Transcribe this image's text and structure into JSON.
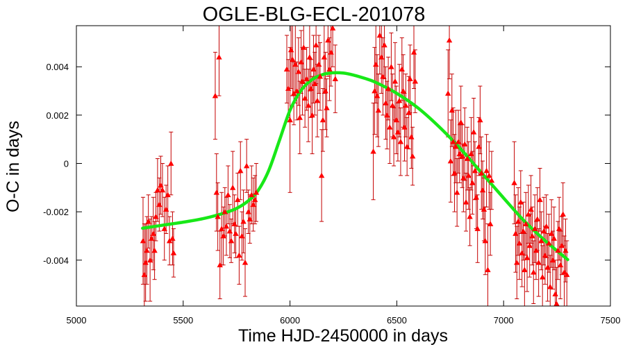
{
  "chart_data": {
    "type": "scatter",
    "title": "OGLE-BLG-ECL-201078",
    "xlabel": "Time HJD-2450000 in days",
    "ylabel": "O-C in days",
    "xlim": [
      5000,
      7500
    ],
    "ylim": [
      -0.0059,
      0.0057
    ],
    "x_ticks": [
      5000,
      5500,
      6000,
      6500,
      7000,
      7500
    ],
    "y_ticks": [
      -0.004,
      -0.002,
      0,
      0.002,
      0.004
    ],
    "x_tick_labels": [
      "5000",
      "5500",
      "6000",
      "6500",
      "7000",
      "7500"
    ],
    "y_tick_labels": [
      "-0.004",
      "-0.002",
      "0",
      "0.002",
      "0.004"
    ],
    "grid": false,
    "colors": {
      "points": "#ff0000",
      "error_bars": "#c40000",
      "model": "#18e818"
    },
    "series": [
      {
        "kind": "data_with_error_bars",
        "points": [
          [
            5312,
            -0.0032,
            0.0018
          ],
          [
            5318,
            -0.0046,
            0.0021
          ],
          [
            5324,
            -0.0041,
            0.0016
          ],
          [
            5330,
            -0.0036,
            0.0014
          ],
          [
            5337,
            -0.0024,
            0.0011
          ],
          [
            5345,
            -0.004,
            0.0017
          ],
          [
            5352,
            -0.0031,
            0.0009
          ],
          [
            5360,
            -0.0029,
            0.0015
          ],
          [
            5366,
            -0.0036,
            0.0012
          ],
          [
            5372,
            -0.0022,
            0.001
          ],
          [
            5380,
            -0.0011,
            0.0013
          ],
          [
            5388,
            -0.0017,
            0.0011
          ],
          [
            5395,
            -0.0009,
            0.0012
          ],
          [
            5403,
            -0.0011,
            0.0011
          ],
          [
            5412,
            -0.0027,
            0.0013
          ],
          [
            5420,
            -0.0019,
            0.001
          ],
          [
            5428,
            -0.0013,
            0.0012
          ],
          [
            5436,
            -0.0032,
            0.001
          ],
          [
            5443,
            0.0,
            0.0013
          ],
          [
            5450,
            -0.0031,
            0.0011
          ],
          [
            5455,
            -0.0037,
            0.001
          ],
          [
            5650,
            0.0028,
            0.0018
          ],
          [
            5656,
            -0.0012,
            0.0016
          ],
          [
            5662,
            -0.0022,
            0.0014
          ],
          [
            5668,
            0.0044,
            0.0016
          ],
          [
            5672,
            -0.0042,
            0.0014
          ],
          [
            5680,
            -0.0027,
            0.0015
          ],
          [
            5688,
            -0.003,
            0.0012
          ],
          [
            5695,
            -0.002,
            0.001
          ],
          [
            5702,
            -0.0026,
            0.0012
          ],
          [
            5710,
            -0.0013,
            0.0012
          ],
          [
            5718,
            -0.0028,
            0.0011
          ],
          [
            5725,
            -0.0032,
            0.0009
          ],
          [
            5732,
            -0.001,
            0.0015
          ],
          [
            5740,
            -0.0025,
            0.0012
          ],
          [
            5746,
            -0.0029,
            0.001
          ],
          [
            5755,
            -0.0015,
            0.0011
          ],
          [
            5762,
            -0.0038,
            0.0012
          ],
          [
            5768,
            -0.0003,
            0.0012
          ],
          [
            5775,
            -0.003,
            0.001
          ],
          [
            5782,
            -0.0024,
            0.0013
          ],
          [
            5790,
            -0.0041,
            0.0014
          ],
          [
            5797,
            -0.0001,
            0.0011
          ],
          [
            5805,
            -0.002,
            0.0009
          ],
          [
            5812,
            -0.0023,
            0.001
          ],
          [
            5820,
            -0.0013,
            0.0012
          ],
          [
            5828,
            -0.0017,
            0.0011
          ],
          [
            5836,
            -0.0015,
            0.001
          ],
          [
            5842,
            -0.0012,
            0.0012
          ],
          [
            5985,
            0.0039,
            0.0014
          ],
          [
            5992,
            0.0031,
            0.0012
          ],
          [
            6000,
            0.0018,
            0.003
          ],
          [
            6005,
            0.0047,
            0.0016
          ],
          [
            6012,
            0.0043,
            0.0015
          ],
          [
            6018,
            0.0029,
            0.0013
          ],
          [
            6025,
            0.0041,
            0.0016
          ],
          [
            6032,
            0.003,
            0.0012
          ],
          [
            6040,
            0.0038,
            0.0014
          ],
          [
            6046,
            0.0019,
            0.0015
          ],
          [
            6052,
            0.0042,
            0.0013
          ],
          [
            6058,
            0.0034,
            0.0014
          ],
          [
            6064,
            0.0048,
            0.0015
          ],
          [
            6070,
            0.0027,
            0.0012
          ],
          [
            6078,
            0.0035,
            0.0013
          ],
          [
            6086,
            0.0024,
            0.0015
          ],
          [
            6092,
            0.0044,
            0.0014
          ],
          [
            6098,
            0.0031,
            0.0012
          ],
          [
            6104,
            0.002,
            0.0016
          ],
          [
            6110,
            0.0039,
            0.0014
          ],
          [
            6116,
            0.0033,
            0.0013
          ],
          [
            6122,
            0.0049,
            0.0016
          ],
          [
            6128,
            0.0026,
            0.0015
          ],
          [
            6135,
            0.0041,
            0.0012
          ],
          [
            6141,
            0.0036,
            0.0014
          ],
          [
            6148,
            -0.0005,
            0.0019
          ],
          [
            6154,
            0.0018,
            0.0013
          ],
          [
            6160,
            0.0044,
            0.0015
          ],
          [
            6166,
            0.003,
            0.0016
          ],
          [
            6172,
            0.0023,
            0.0012
          ],
          [
            6178,
            0.0051,
            0.0015
          ],
          [
            6185,
            0.0039,
            0.0013
          ],
          [
            6192,
            0.0046,
            0.0014
          ],
          [
            6200,
            0.0056,
            0.0016
          ],
          [
            6212,
            0.0035,
            0.0014
          ],
          [
            6390,
            0.0005,
            0.002
          ],
          [
            6396,
            0.003,
            0.0018
          ],
          [
            6402,
            0.0041,
            0.0016
          ],
          [
            6408,
            0.0028,
            0.0017
          ],
          [
            6414,
            0.0022,
            0.0015
          ],
          [
            6420,
            0.0053,
            0.0016
          ],
          [
            6428,
            0.0044,
            0.0015
          ],
          [
            6435,
            0.0036,
            0.0016
          ],
          [
            6442,
            0.0049,
            0.0014
          ],
          [
            6448,
            0.0025,
            0.0015
          ],
          [
            6454,
            0.002,
            0.0014
          ],
          [
            6460,
            0.0031,
            0.0013
          ],
          [
            6467,
            0.0015,
            0.0015
          ],
          [
            6474,
            0.004,
            0.0014
          ],
          [
            6480,
            0.0024,
            0.0013
          ],
          [
            6486,
            0.0011,
            0.0012
          ],
          [
            6492,
            0.0034,
            0.0016
          ],
          [
            6498,
            0.0018,
            0.0014
          ],
          [
            6505,
            0.0013,
            0.0012
          ],
          [
            6512,
            0.0026,
            0.0015
          ],
          [
            6518,
            0.0009,
            0.0014
          ],
          [
            6524,
            0.0039,
            0.0013
          ],
          [
            6530,
            0.003,
            0.0015
          ],
          [
            6536,
            0.0015,
            0.0014
          ],
          [
            6542,
            0.0024,
            0.0013
          ],
          [
            6548,
            0.0007,
            0.0012
          ],
          [
            6556,
            0.0021,
            0.0015
          ],
          [
            6562,
            0.0035,
            0.0014
          ],
          [
            6568,
            0.0011,
            0.0013
          ],
          [
            6574,
            0.0003,
            0.0012
          ],
          [
            6580,
            0.0046,
            0.0015
          ],
          [
            6586,
            0.0034,
            0.0013
          ],
          [
            6740,
            0.0029,
            0.0018
          ],
          [
            6746,
            0.0051,
            0.0016
          ],
          [
            6752,
            0.0001,
            0.0017
          ],
          [
            6758,
            0.0022,
            0.0015
          ],
          [
            6764,
            0.0009,
            0.0014
          ],
          [
            6770,
            -0.0004,
            0.0016
          ],
          [
            6776,
            0.0007,
            0.0015
          ],
          [
            6782,
            -0.0012,
            0.0014
          ],
          [
            6788,
            0.0009,
            0.0013
          ],
          [
            6794,
            0.0004,
            0.0012
          ],
          [
            6800,
            0.0017,
            0.0015
          ],
          [
            6806,
            0.0003,
            0.0013
          ],
          [
            6812,
            -0.0006,
            0.0014
          ],
          [
            6818,
            0.0008,
            0.0015
          ],
          [
            6824,
            -0.0016,
            0.0012
          ],
          [
            6830,
            0.0002,
            0.0013
          ],
          [
            6836,
            -0.0005,
            0.0014
          ],
          [
            6842,
            -0.0022,
            0.0012
          ],
          [
            6848,
            0.0004,
            0.0015
          ],
          [
            6854,
            -0.0008,
            0.0013
          ],
          [
            6860,
            0.0013,
            0.0014
          ],
          [
            6866,
            -0.0003,
            0.0012
          ],
          [
            6872,
            -0.0014,
            0.0013
          ],
          [
            6878,
            -0.0027,
            0.0014
          ],
          [
            6884,
            0.0007,
            0.0012
          ],
          [
            6890,
            0.0018,
            0.0014
          ],
          [
            6896,
            -0.0004,
            0.0015
          ],
          [
            6902,
            -0.0011,
            0.0012
          ],
          [
            6908,
            -0.0019,
            0.0013
          ],
          [
            6914,
            -0.0032,
            0.0014
          ],
          [
            6920,
            -0.0003,
            0.0015
          ],
          [
            6926,
            -0.0044,
            0.0019
          ],
          [
            6932,
            -0.0005,
            0.0014
          ],
          [
            6938,
            -0.0025,
            0.0013
          ],
          [
            6944,
            -0.0007,
            0.0012
          ],
          [
            7050,
            -0.0008,
            0.0017
          ],
          [
            7056,
            -0.0029,
            0.0016
          ],
          [
            7062,
            -0.0041,
            0.0015
          ],
          [
            7068,
            -0.0024,
            0.0014
          ],
          [
            7074,
            -0.0033,
            0.0015
          ],
          [
            7080,
            -0.0016,
            0.0013
          ],
          [
            7086,
            -0.0037,
            0.0014
          ],
          [
            7092,
            -0.0028,
            0.0012
          ],
          [
            7098,
            -0.0044,
            0.0015
          ],
          [
            7104,
            -0.0025,
            0.0013
          ],
          [
            7110,
            -0.0039,
            0.0014
          ],
          [
            7116,
            -0.0021,
            0.0012
          ],
          [
            7122,
            -0.0034,
            0.0013
          ],
          [
            7128,
            -0.0019,
            0.0014
          ],
          [
            7134,
            -0.003,
            0.0012
          ],
          [
            7140,
            -0.0045,
            0.0013
          ],
          [
            7146,
            -0.0027,
            0.0014
          ],
          [
            7152,
            -0.0036,
            0.0012
          ],
          [
            7158,
            -0.0023,
            0.0013
          ],
          [
            7164,
            -0.0041,
            0.0014
          ],
          [
            7170,
            -0.0015,
            0.0013
          ],
          [
            7176,
            -0.0032,
            0.0012
          ],
          [
            7182,
            -0.0047,
            0.0013
          ],
          [
            7188,
            -0.0028,
            0.0014
          ],
          [
            7194,
            -0.0038,
            0.0012
          ],
          [
            7200,
            -0.0026,
            0.0013
          ],
          [
            7206,
            -0.0043,
            0.0014
          ],
          [
            7212,
            -0.0033,
            0.0012
          ],
          [
            7218,
            -0.0051,
            0.0013
          ],
          [
            7224,
            -0.0029,
            0.0014
          ],
          [
            7230,
            -0.004,
            0.0012
          ],
          [
            7236,
            -0.0031,
            0.0013
          ],
          [
            7242,
            -0.0054,
            0.0014
          ],
          [
            7248,
            -0.0058,
            0.0015
          ],
          [
            7254,
            -0.0036,
            0.0012
          ],
          [
            7260,
            -0.0027,
            0.0013
          ],
          [
            7266,
            -0.0042,
            0.0014
          ],
          [
            7272,
            -0.0034,
            0.0012
          ],
          [
            7278,
            -0.0021,
            0.0013
          ],
          [
            7284,
            -0.0045,
            0.0015
          ],
          [
            7290,
            -0.0036,
            0.0013
          ],
          [
            7296,
            -0.0046,
            0.0014
          ]
        ]
      },
      {
        "kind": "model_curve",
        "x": [
          5310,
          5400,
          5500,
          5600,
          5700,
          5750,
          5800,
          5850,
          5900,
          5950,
          6000,
          6050,
          6100,
          6150,
          6200,
          6250,
          6300,
          6350,
          6400,
          6500,
          6600,
          6700,
          6800,
          6900,
          7000,
          7100,
          7200,
          7300
        ],
        "y": [
          -0.00268,
          -0.00256,
          -0.00243,
          -0.00227,
          -0.00203,
          -0.00186,
          -0.00158,
          -0.00113,
          -0.0003,
          0.00094,
          0.0022,
          0.003,
          0.00345,
          0.00367,
          0.00375,
          0.00374,
          0.00365,
          0.00352,
          0.00336,
          0.0029,
          0.00229,
          0.0015,
          0.00059,
          -0.00042,
          -0.00143,
          -0.00241,
          -0.00324,
          -0.00398
        ]
      }
    ]
  }
}
